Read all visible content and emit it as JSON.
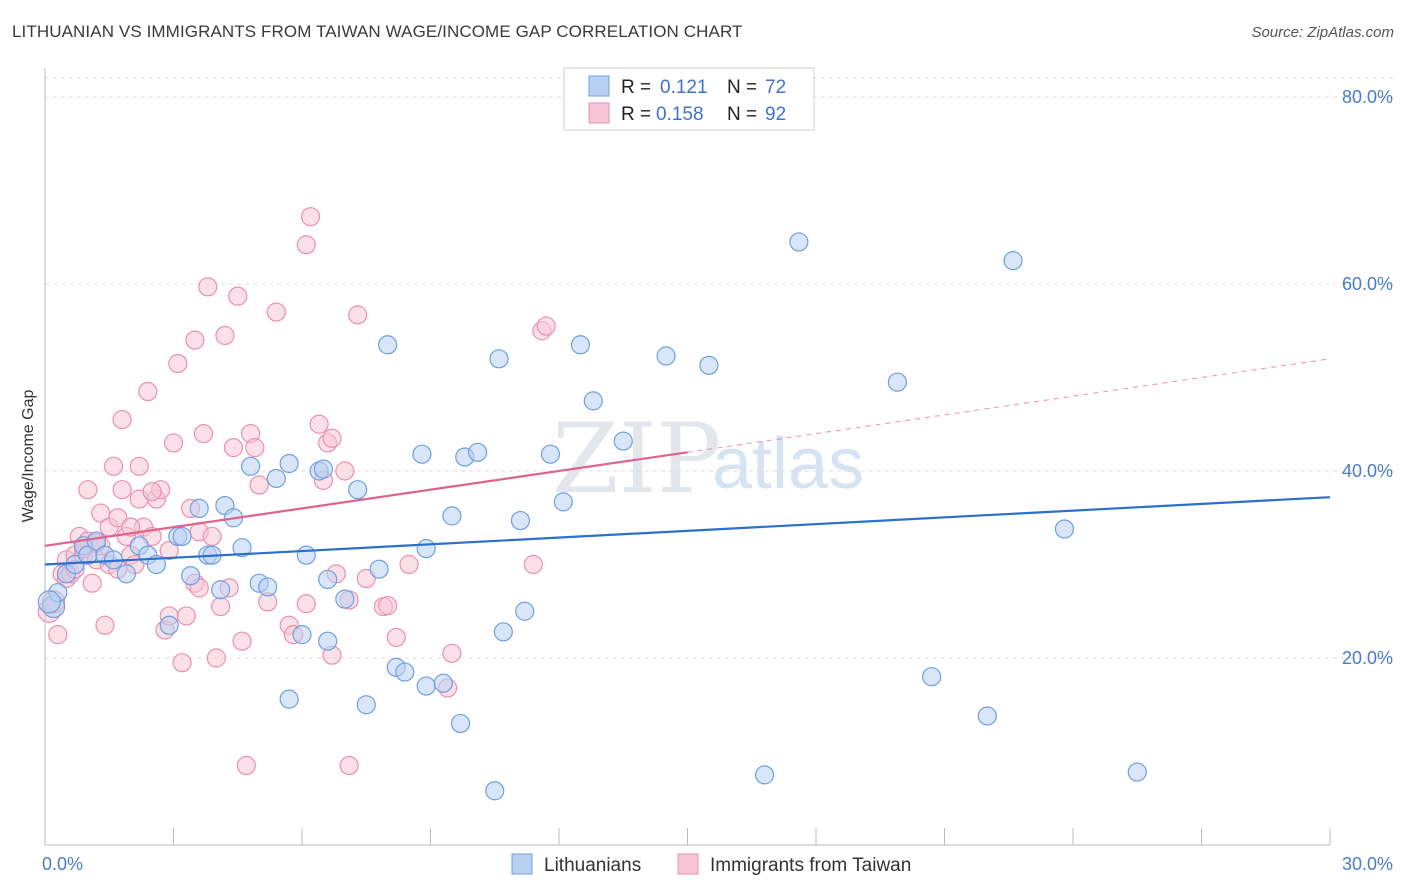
{
  "title": "LITHUANIAN VS IMMIGRANTS FROM TAIWAN WAGE/INCOME GAP CORRELATION CHART",
  "source": "Source: ZipAtlas.com",
  "watermark": {
    "zip": "ZIP",
    "atlas": "atlas"
  },
  "colors": {
    "blue": "#6fa0e0",
    "blue_fill": "#b9d0f2",
    "blue_line": "#2b6fcf",
    "pink": "#ec8fb0",
    "pink_fill": "#f7c6d6",
    "pink_line": "#e0628f",
    "grid": "#dddddd",
    "tick_text": "#4a7cc9"
  },
  "legend": {
    "rows": [
      {
        "r_label": "R =",
        "r_value": "0.121",
        "n_label": "N =",
        "n_value": "72"
      },
      {
        "r_label": "R =",
        "r_value": "0.158",
        "n_label": "N =",
        "n_value": "92"
      }
    ]
  },
  "bottom_legend": [
    "Lithuanians",
    "Immigrants from Taiwan"
  ],
  "chart_data": {
    "type": "scatter",
    "title": "LITHUANIAN VS IMMIGRANTS FROM TAIWAN WAGE/INCOME GAP CORRELATION CHART",
    "xlabel": "",
    "ylabel": "Wage/Income Gap",
    "xlim": [
      0,
      30
    ],
    "ylim": [
      0,
      80
    ],
    "x_tick_labels": [
      "0.0%",
      "30.0%"
    ],
    "y_tick_labels": [
      "20.0%",
      "40.0%",
      "60.0%",
      "80.0%"
    ],
    "y_ticks": [
      20,
      40,
      60,
      80
    ],
    "grid": true,
    "legend_position": "top-center",
    "series": [
      {
        "name": "Lithuanians",
        "r": 0.121,
        "n": 72,
        "trend": {
          "x": [
            0,
            30
          ],
          "y": [
            30.0,
            37.2
          ],
          "dashed_from": null
        },
        "points": [
          [
            0.2,
            25.5
          ],
          [
            0.3,
            27.0
          ],
          [
            0.5,
            29.0
          ],
          [
            0.7,
            30.0
          ],
          [
            0.9,
            32.0
          ],
          [
            1.0,
            31.0
          ],
          [
            1.2,
            32.5
          ],
          [
            1.4,
            31.0
          ],
          [
            1.6,
            30.5
          ],
          [
            1.9,
            29.0
          ],
          [
            2.2,
            32.0
          ],
          [
            2.4,
            31.0
          ],
          [
            2.6,
            30.0
          ],
          [
            2.9,
            23.5
          ],
          [
            3.1,
            33.0
          ],
          [
            3.2,
            33.0
          ],
          [
            3.4,
            28.8
          ],
          [
            3.6,
            36.0
          ],
          [
            3.8,
            31.0
          ],
          [
            3.9,
            31.0
          ],
          [
            4.1,
            27.3
          ],
          [
            4.2,
            36.3
          ],
          [
            4.4,
            35.0
          ],
          [
            4.6,
            31.8
          ],
          [
            4.8,
            40.5
          ],
          [
            5.0,
            28.0
          ],
          [
            5.2,
            27.6
          ],
          [
            5.4,
            39.2
          ],
          [
            5.7,
            40.8
          ],
          [
            5.7,
            15.6
          ],
          [
            6.0,
            22.5
          ],
          [
            6.1,
            31.0
          ],
          [
            6.4,
            40.0
          ],
          [
            6.5,
            40.2
          ],
          [
            6.6,
            21.8
          ],
          [
            6.6,
            28.4
          ],
          [
            7.0,
            26.3
          ],
          [
            7.3,
            38.0
          ],
          [
            7.5,
            15.0
          ],
          [
            7.8,
            29.5
          ],
          [
            8.0,
            53.5
          ],
          [
            8.2,
            19.0
          ],
          [
            8.4,
            18.5
          ],
          [
            8.8,
            41.8
          ],
          [
            8.9,
            17.0
          ],
          [
            8.9,
            31.7
          ],
          [
            9.3,
            17.3
          ],
          [
            9.5,
            35.2
          ],
          [
            9.7,
            13.0
          ],
          [
            9.8,
            41.5
          ],
          [
            10.1,
            42.0
          ],
          [
            10.5,
            5.8
          ],
          [
            10.6,
            52.0
          ],
          [
            10.7,
            22.8
          ],
          [
            11.1,
            34.7
          ],
          [
            11.2,
            25.0
          ],
          [
            11.8,
            41.8
          ],
          [
            12.1,
            36.7
          ],
          [
            12.5,
            53.5
          ],
          [
            12.8,
            47.5
          ],
          [
            13.5,
            43.2
          ],
          [
            14.5,
            52.3
          ],
          [
            15.5,
            51.3
          ],
          [
            16.8,
            7.5
          ],
          [
            17.6,
            64.5
          ],
          [
            19.9,
            49.5
          ],
          [
            20.7,
            18.0
          ],
          [
            22.0,
            13.8
          ],
          [
            22.6,
            62.5
          ],
          [
            23.8,
            33.8
          ],
          [
            25.5,
            7.8
          ],
          [
            0.1,
            26.0
          ]
        ]
      },
      {
        "name": "Immigrants from Taiwan",
        "r": 0.158,
        "n": 92,
        "trend": {
          "x": [
            0,
            30
          ],
          "y": [
            32.0,
            52.0
          ],
          "dashed_from": 15
        },
        "points": [
          [
            0.1,
            25.0
          ],
          [
            0.2,
            26.0
          ],
          [
            0.3,
            22.5
          ],
          [
            0.4,
            29.0
          ],
          [
            0.5,
            30.5
          ],
          [
            0.5,
            28.5
          ],
          [
            0.6,
            29.0
          ],
          [
            0.7,
            31.0
          ],
          [
            0.7,
            29.5
          ],
          [
            0.8,
            33.0
          ],
          [
            0.9,
            31.0
          ],
          [
            1.0,
            32.5
          ],
          [
            1.0,
            38.0
          ],
          [
            1.1,
            28.0
          ],
          [
            1.2,
            30.5
          ],
          [
            1.3,
            35.5
          ],
          [
            1.3,
            32.0
          ],
          [
            1.4,
            23.5
          ],
          [
            1.5,
            34.0
          ],
          [
            1.5,
            30.0
          ],
          [
            1.6,
            40.5
          ],
          [
            1.7,
            35.0
          ],
          [
            1.7,
            29.5
          ],
          [
            1.8,
            45.5
          ],
          [
            1.8,
            38.0
          ],
          [
            1.9,
            33.0
          ],
          [
            2.0,
            31.0
          ],
          [
            2.1,
            30.0
          ],
          [
            2.2,
            37.0
          ],
          [
            2.2,
            40.5
          ],
          [
            2.3,
            34.0
          ],
          [
            2.4,
            48.5
          ],
          [
            2.5,
            33.0
          ],
          [
            2.6,
            37.0
          ],
          [
            2.7,
            38.0
          ],
          [
            2.8,
            23.0
          ],
          [
            2.9,
            31.5
          ],
          [
            2.9,
            24.5
          ],
          [
            3.0,
            43.0
          ],
          [
            3.1,
            51.5
          ],
          [
            3.2,
            19.5
          ],
          [
            3.3,
            24.5
          ],
          [
            3.4,
            36.0
          ],
          [
            3.5,
            28.0
          ],
          [
            3.5,
            54.0
          ],
          [
            3.6,
            33.5
          ],
          [
            3.7,
            44.0
          ],
          [
            3.8,
            59.7
          ],
          [
            3.9,
            33.0
          ],
          [
            4.0,
            20.0
          ],
          [
            4.1,
            25.5
          ],
          [
            4.2,
            54.5
          ],
          [
            4.3,
            27.5
          ],
          [
            4.4,
            42.5
          ],
          [
            4.5,
            58.7
          ],
          [
            4.6,
            21.8
          ],
          [
            4.7,
            8.5
          ],
          [
            4.8,
            44.0
          ],
          [
            4.9,
            42.5
          ],
          [
            5.0,
            38.5
          ],
          [
            5.2,
            26.0
          ],
          [
            5.4,
            57.0
          ],
          [
            5.7,
            23.5
          ],
          [
            5.8,
            22.5
          ],
          [
            6.1,
            25.8
          ],
          [
            6.1,
            64.2
          ],
          [
            6.2,
            67.2
          ],
          [
            6.4,
            45.0
          ],
          [
            6.5,
            39.0
          ],
          [
            6.6,
            43.0
          ],
          [
            6.7,
            20.3
          ],
          [
            6.8,
            29.0
          ],
          [
            7.0,
            40.0
          ],
          [
            7.1,
            8.5
          ],
          [
            7.3,
            56.7
          ],
          [
            7.5,
            28.5
          ],
          [
            7.9,
            25.5
          ],
          [
            8.0,
            25.6
          ],
          [
            8.2,
            22.2
          ],
          [
            8.5,
            30.0
          ],
          [
            9.4,
            16.8
          ],
          [
            9.5,
            20.5
          ],
          [
            11.4,
            30.0
          ],
          [
            11.6,
            55.0
          ],
          [
            11.7,
            55.5
          ],
          [
            6.7,
            43.5
          ],
          [
            3.6,
            27.5
          ],
          [
            2.5,
            37.8
          ],
          [
            1.2,
            32.3
          ],
          [
            0.9,
            31.7
          ],
          [
            2.0,
            34.0
          ],
          [
            7.1,
            26.2
          ]
        ]
      }
    ]
  }
}
